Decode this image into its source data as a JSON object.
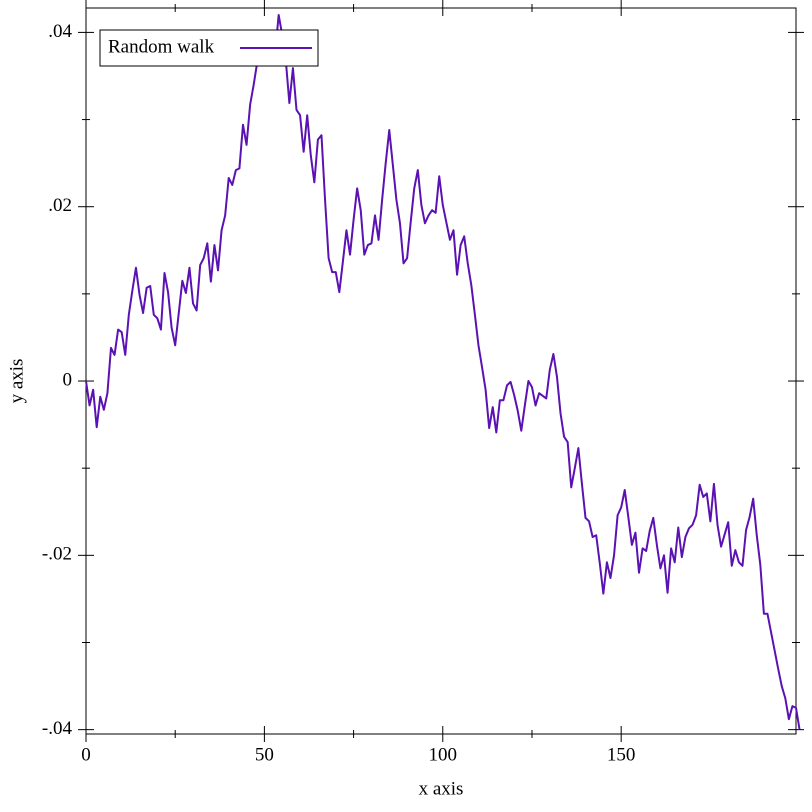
{
  "chart_data": {
    "type": "line",
    "x_label": "x axis",
    "y_label": "y axis",
    "legend": "top-left",
    "series": [
      {
        "name": "Random walk",
        "color": "#5b12b3",
        "values": [
          0,
          -0.0028,
          -0.001,
          -0.0053,
          -0.0018,
          -0.0033,
          -0.0014,
          0.0038,
          0.003,
          0.0059,
          0.0056,
          0.003,
          0.0076,
          0.0104,
          0.013,
          0.0099,
          0.0078,
          0.0107,
          0.0109,
          0.0076,
          0.0072,
          0.0059,
          0.0124,
          0.0102,
          0.0061,
          0.0041,
          0.0078,
          0.0115,
          0.0101,
          0.013,
          0.0089,
          0.0081,
          0.0133,
          0.0141,
          0.0158,
          0.0114,
          0.0156,
          0.0127,
          0.0173,
          0.019,
          0.0233,
          0.0225,
          0.0242,
          0.0244,
          0.0294,
          0.0271,
          0.0317,
          0.034,
          0.0366,
          0.0368,
          0.0386,
          0.038,
          0.0394,
          0.0376,
          0.042,
          0.0397,
          0.0368,
          0.0319,
          0.0359,
          0.0311,
          0.0305,
          0.0263,
          0.0305,
          0.0259,
          0.0228,
          0.0277,
          0.0282,
          0.0208,
          0.0141,
          0.0125,
          0.0125,
          0.0102,
          0.0137,
          0.0173,
          0.0145,
          0.0185,
          0.0221,
          0.0196,
          0.0145,
          0.0156,
          0.0158,
          0.019,
          0.0162,
          0.0208,
          0.025,
          0.0288,
          0.0248,
          0.0208,
          0.0181,
          0.0135,
          0.0141,
          0.0182,
          0.0221,
          0.0242,
          0.0202,
          0.0181,
          0.019,
          0.0196,
          0.0193,
          0.0235,
          0.0202,
          0.0182,
          0.0162,
          0.0173,
          0.0122,
          0.0156,
          0.0166,
          0.0135,
          0.011,
          0.0076,
          0.0041,
          0.0016,
          -0.001,
          -0.0054,
          -0.003,
          -0.0059,
          -0.0022,
          -0.0022,
          -0.0005,
          -0.0001,
          -0.0016,
          -0.0034,
          -0.0057,
          -0.0028,
          0,
          -0.0007,
          -0.0028,
          -0.0014,
          -0.0017,
          -0.002,
          0.0013,
          0.0031,
          0.0005,
          -0.0037,
          -0.0064,
          -0.007,
          -0.0122,
          -0.01,
          -0.0077,
          -0.0118,
          -0.0157,
          -0.0161,
          -0.0179,
          -0.0177,
          -0.0209,
          -0.0244,
          -0.0208,
          -0.0226,
          -0.02,
          -0.0154,
          -0.0145,
          -0.0125,
          -0.0156,
          -0.0188,
          -0.0174,
          -0.022,
          -0.0192,
          -0.0195,
          -0.0172,
          -0.0157,
          -0.0188,
          -0.0215,
          -0.02,
          -0.0243,
          -0.0192,
          -0.0208,
          -0.0168,
          -0.0202,
          -0.0179,
          -0.0169,
          -0.0165,
          -0.0154,
          -0.0119,
          -0.0133,
          -0.0129,
          -0.0161,
          -0.0118,
          -0.0165,
          -0.019,
          -0.0176,
          -0.0162,
          -0.0212,
          -0.0194,
          -0.0208,
          -0.0212,
          -0.0171,
          -0.0156,
          -0.0135,
          -0.0177,
          -0.0211,
          -0.0267,
          -0.0267,
          -0.0288,
          -0.0309,
          -0.033,
          -0.035,
          -0.0364,
          -0.0388,
          -0.0373,
          -0.0375,
          -0.04
        ]
      }
    ],
    "xlim": [
      0,
      199
    ],
    "xticks": [
      0,
      50,
      100,
      150
    ],
    "ylim": [
      -0.0405,
      0.0428
    ],
    "yticks": [
      {
        "value": -0.04,
        "label": "-.04"
      },
      {
        "value": -0.02,
        "label": "-.02"
      },
      0,
      {
        "value": 0.02,
        "label": ".02"
      },
      {
        "value": 0.04,
        "label": ".04"
      }
    ]
  }
}
